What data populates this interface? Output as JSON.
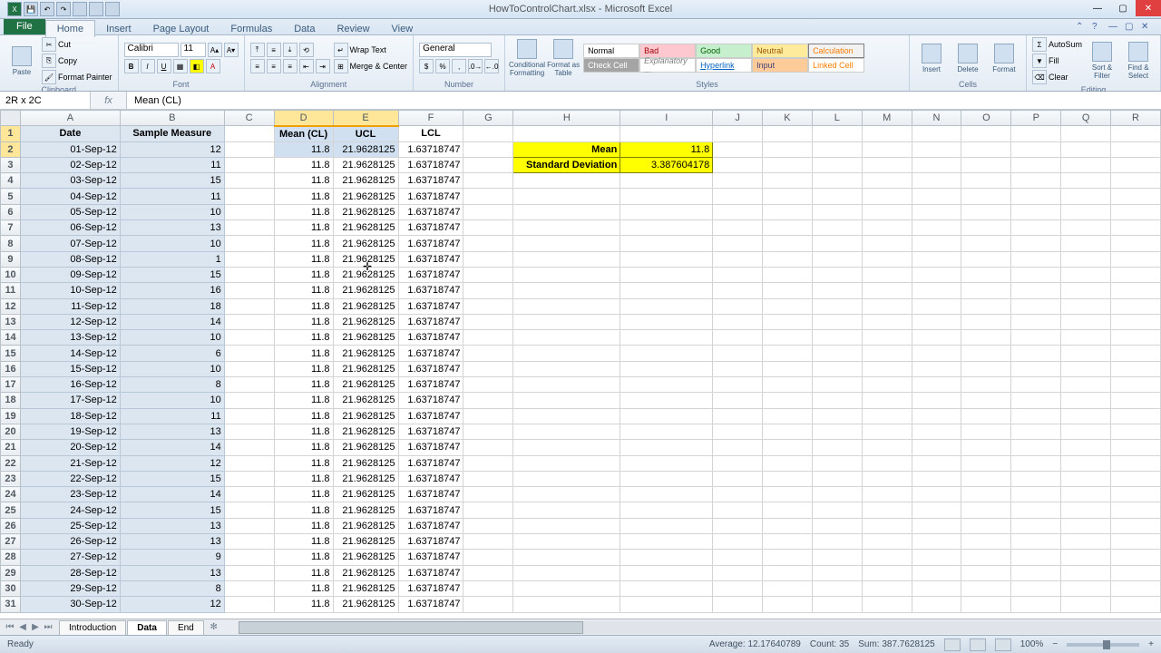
{
  "app": {
    "title_doc": "HowToControlChart.xlsx",
    "title_app": "Microsoft Excel"
  },
  "tabs": {
    "file": "File",
    "list": [
      "Home",
      "Insert",
      "Page Layout",
      "Formulas",
      "Data",
      "Review",
      "View"
    ],
    "active": "Home"
  },
  "clipboard": {
    "group": "Clipboard",
    "cut": "Cut",
    "copy": "Copy",
    "fmtpaint": "Format Painter",
    "paste": "Paste"
  },
  "font": {
    "group": "Font",
    "family": "Calibri",
    "size": "11"
  },
  "alignment": {
    "group": "Alignment",
    "wrap": "Wrap Text",
    "merge": "Merge & Center"
  },
  "number": {
    "group": "Number",
    "format": "General"
  },
  "styles": {
    "group": "Styles",
    "condfmt": "Conditional Formatting",
    "fmttable": "Format as Table",
    "cellstyles": "Cell Styles",
    "cells": {
      "normal": "Normal",
      "bad": "Bad",
      "good": "Good",
      "neutral": "Neutral",
      "calc": "Calculation",
      "check": "Check Cell",
      "explan": "Explanatory ...",
      "hyperlink": "Hyperlink",
      "input": "Input",
      "linked": "Linked Cell"
    }
  },
  "cellsGrp": {
    "group": "Cells",
    "insert": "Insert",
    "delete": "Delete",
    "format": "Format"
  },
  "editing": {
    "group": "Editing",
    "autosum": "AutoSum",
    "fill": "Fill",
    "clear": "Clear",
    "sort": "Sort & Filter",
    "find": "Find & Select"
  },
  "namebox": "2R x 2C",
  "formula": "Mean (CL)",
  "columns": [
    "A",
    "B",
    "C",
    "D",
    "E",
    "F",
    "G",
    "H",
    "I",
    "J",
    "K",
    "L",
    "M",
    "N",
    "O",
    "P",
    "Q",
    "R"
  ],
  "headers": {
    "A": "Date",
    "B": "Sample Measure",
    "D": "Mean (CL)",
    "E": "UCL",
    "F": "LCL"
  },
  "stats": {
    "mean_label": "Mean",
    "mean_val": "11.8",
    "sd_label": "Standard Deviation",
    "sd_val": "3.387604178"
  },
  "rows": [
    {
      "date": "01-Sep-12",
      "m": "12",
      "mean": "11.8",
      "ucl": "21.9628125",
      "lcl": "1.63718747"
    },
    {
      "date": "02-Sep-12",
      "m": "11",
      "mean": "11.8",
      "ucl": "21.9628125",
      "lcl": "1.63718747"
    },
    {
      "date": "03-Sep-12",
      "m": "15",
      "mean": "11.8",
      "ucl": "21.9628125",
      "lcl": "1.63718747"
    },
    {
      "date": "04-Sep-12",
      "m": "11",
      "mean": "11.8",
      "ucl": "21.9628125",
      "lcl": "1.63718747"
    },
    {
      "date": "05-Sep-12",
      "m": "10",
      "mean": "11.8",
      "ucl": "21.9628125",
      "lcl": "1.63718747"
    },
    {
      "date": "06-Sep-12",
      "m": "13",
      "mean": "11.8",
      "ucl": "21.9628125",
      "lcl": "1.63718747"
    },
    {
      "date": "07-Sep-12",
      "m": "10",
      "mean": "11.8",
      "ucl": "21.9628125",
      "lcl": "1.63718747"
    },
    {
      "date": "08-Sep-12",
      "m": "1",
      "mean": "11.8",
      "ucl": "21.9628125",
      "lcl": "1.63718747"
    },
    {
      "date": "09-Sep-12",
      "m": "15",
      "mean": "11.8",
      "ucl": "21.9628125",
      "lcl": "1.63718747"
    },
    {
      "date": "10-Sep-12",
      "m": "16",
      "mean": "11.8",
      "ucl": "21.9628125",
      "lcl": "1.63718747"
    },
    {
      "date": "11-Sep-12",
      "m": "18",
      "mean": "11.8",
      "ucl": "21.9628125",
      "lcl": "1.63718747"
    },
    {
      "date": "12-Sep-12",
      "m": "14",
      "mean": "11.8",
      "ucl": "21.9628125",
      "lcl": "1.63718747"
    },
    {
      "date": "13-Sep-12",
      "m": "10",
      "mean": "11.8",
      "ucl": "21.9628125",
      "lcl": "1.63718747"
    },
    {
      "date": "14-Sep-12",
      "m": "6",
      "mean": "11.8",
      "ucl": "21.9628125",
      "lcl": "1.63718747"
    },
    {
      "date": "15-Sep-12",
      "m": "10",
      "mean": "11.8",
      "ucl": "21.9628125",
      "lcl": "1.63718747"
    },
    {
      "date": "16-Sep-12",
      "m": "8",
      "mean": "11.8",
      "ucl": "21.9628125",
      "lcl": "1.63718747"
    },
    {
      "date": "17-Sep-12",
      "m": "10",
      "mean": "11.8",
      "ucl": "21.9628125",
      "lcl": "1.63718747"
    },
    {
      "date": "18-Sep-12",
      "m": "11",
      "mean": "11.8",
      "ucl": "21.9628125",
      "lcl": "1.63718747"
    },
    {
      "date": "19-Sep-12",
      "m": "13",
      "mean": "11.8",
      "ucl": "21.9628125",
      "lcl": "1.63718747"
    },
    {
      "date": "20-Sep-12",
      "m": "14",
      "mean": "11.8",
      "ucl": "21.9628125",
      "lcl": "1.63718747"
    },
    {
      "date": "21-Sep-12",
      "m": "12",
      "mean": "11.8",
      "ucl": "21.9628125",
      "lcl": "1.63718747"
    },
    {
      "date": "22-Sep-12",
      "m": "15",
      "mean": "11.8",
      "ucl": "21.9628125",
      "lcl": "1.63718747"
    },
    {
      "date": "23-Sep-12",
      "m": "14",
      "mean": "11.8",
      "ucl": "21.9628125",
      "lcl": "1.63718747"
    },
    {
      "date": "24-Sep-12",
      "m": "15",
      "mean": "11.8",
      "ucl": "21.9628125",
      "lcl": "1.63718747"
    },
    {
      "date": "25-Sep-12",
      "m": "13",
      "mean": "11.8",
      "ucl": "21.9628125",
      "lcl": "1.63718747"
    },
    {
      "date": "26-Sep-12",
      "m": "13",
      "mean": "11.8",
      "ucl": "21.9628125",
      "lcl": "1.63718747"
    },
    {
      "date": "27-Sep-12",
      "m": "9",
      "mean": "11.8",
      "ucl": "21.9628125",
      "lcl": "1.63718747"
    },
    {
      "date": "28-Sep-12",
      "m": "13",
      "mean": "11.8",
      "ucl": "21.9628125",
      "lcl": "1.63718747"
    },
    {
      "date": "29-Sep-12",
      "m": "8",
      "mean": "11.8",
      "ucl": "21.9628125",
      "lcl": "1.63718747"
    },
    {
      "date": "30-Sep-12",
      "m": "12",
      "mean": "11.8",
      "ucl": "21.9628125",
      "lcl": "1.63718747"
    }
  ],
  "sheets": {
    "list": [
      "Introduction",
      "Data",
      "End"
    ],
    "active": "Data"
  },
  "status": {
    "ready": "Ready",
    "avg": "Average: 12.17640789",
    "count": "Count: 35",
    "sum": "Sum: 387.7628125",
    "zoom": "100%"
  },
  "colors": {
    "data_fill": "#dce6f1",
    "stat_fill": "#ffff00",
    "colhdr_sel": "#ffe699"
  }
}
